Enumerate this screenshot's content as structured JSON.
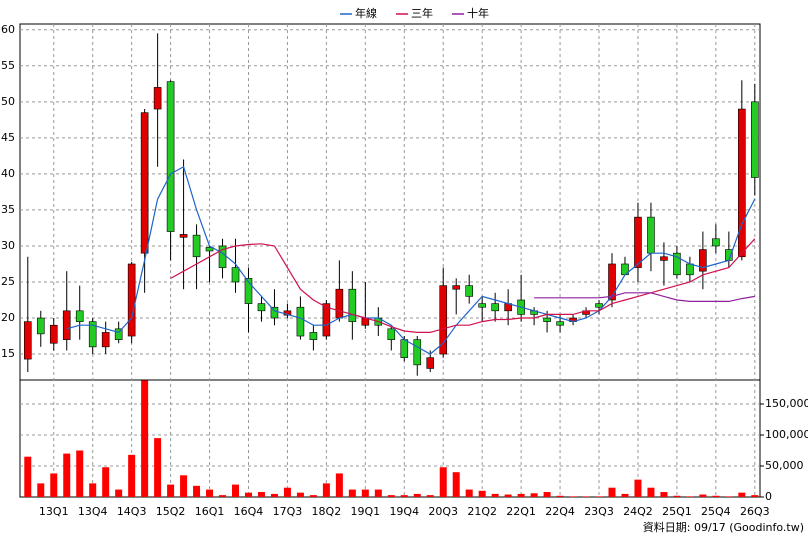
{
  "chart_data": {
    "type": "candlestick",
    "categories": [
      null,
      null,
      "13Q1",
      null,
      null,
      "13Q4",
      null,
      null,
      "14Q3",
      null,
      null,
      "15Q2",
      null,
      null,
      "16Q1",
      null,
      null,
      "16Q4",
      null,
      null,
      "17Q3",
      null,
      null,
      "18Q2",
      null,
      null,
      "19Q1",
      null,
      null,
      "19Q4",
      null,
      null,
      "20Q3",
      null,
      null,
      "21Q2",
      null,
      null,
      "22Q1",
      null,
      null,
      "22Q4",
      null,
      null,
      "23Q3",
      null,
      null,
      "24Q2",
      null,
      null,
      "25Q1",
      null,
      null,
      "25Q4",
      null,
      null,
      "26Q3"
    ],
    "open": [
      14.3,
      20,
      16.5,
      17,
      21,
      19.5,
      16,
      18.5,
      17.5,
      29,
      49,
      52.8,
      31.2,
      31.5,
      29.8,
      30,
      27,
      25.5,
      22,
      21.5,
      20.4,
      21.5,
      18,
      17.5,
      20,
      24,
      19,
      20,
      18.5,
      17,
      17,
      13,
      15,
      24,
      24.5,
      22,
      22,
      21,
      22.5,
      21,
      20,
      19.5,
      19.5,
      20.5,
      22,
      22.5,
      27.5,
      27,
      34,
      28,
      29,
      27.5,
      26.5,
      31,
      29.5,
      28.5,
      50
    ],
    "high": [
      28.5,
      21,
      20,
      26.5,
      24.5,
      20,
      19.5,
      19.5,
      27.8,
      49,
      59.5,
      53,
      42,
      33,
      30,
      31,
      31,
      27,
      23,
      24,
      22,
      23,
      19,
      22.5,
      28,
      26.5,
      25,
      21.5,
      19,
      17.5,
      17.5,
      15.5,
      27,
      25.5,
      26,
      23,
      23.5,
      24,
      26,
      21.5,
      21,
      20.5,
      20.5,
      21.5,
      22.5,
      29,
      28.5,
      36,
      36,
      30.5,
      30,
      28.5,
      32,
      33,
      32,
      53,
      52.5
    ],
    "low": [
      12.5,
      16,
      15.5,
      15.5,
      17,
      15,
      15,
      16.5,
      16.5,
      23.5,
      41,
      28,
      24,
      24,
      25,
      25.5,
      23.5,
      18,
      19.5,
      19,
      20,
      17,
      15.5,
      17,
      19.5,
      17,
      18.5,
      17.5,
      15.5,
      14,
      12,
      12.5,
      14.5,
      20.5,
      22,
      19.5,
      19.5,
      19,
      19.5,
      19,
      18,
      18,
      19,
      20,
      20.5,
      21.5,
      26,
      25,
      26.5,
      24.5,
      25.5,
      25,
      24,
      29,
      27,
      28,
      37
    ],
    "close": [
      19.5,
      17.8,
      19,
      21,
      19.5,
      16,
      18,
      17,
      27.5,
      48.5,
      52,
      32,
      31.6,
      28.5,
      29.3,
      27,
      25,
      22,
      21,
      20,
      21,
      17.5,
      17,
      22,
      24,
      19.5,
      20,
      19,
      17,
      14.5,
      13.5,
      14.5,
      24.5,
      24.5,
      23,
      21.5,
      21,
      22,
      20.5,
      20.5,
      19.5,
      19,
      20,
      21,
      21.5,
      27.5,
      26,
      34,
      29,
      28.5,
      26,
      26,
      29.5,
      30,
      28,
      49,
      39.5
    ],
    "up_color": "#e00000",
    "down_color": "#22cc22",
    "series": [
      {
        "name": "年線",
        "color": "#1e64c8",
        "values": [
          null,
          null,
          null,
          18.5,
          19,
          19,
          18.5,
          18,
          20,
          28,
          36.5,
          40,
          41,
          35,
          30,
          29,
          27.5,
          25,
          23,
          21,
          20.5,
          20,
          19,
          19,
          20,
          20.5,
          20,
          20,
          19,
          17,
          16,
          15,
          16.5,
          19,
          21,
          23,
          22.5,
          22,
          21.5,
          21,
          20.5,
          20,
          19.5,
          20,
          21,
          23,
          26,
          27.5,
          29,
          29,
          28.5,
          27.5,
          27,
          27.5,
          28,
          33,
          36.5
        ]
      },
      {
        "name": "三年",
        "color": "#d0104c",
        "values": [
          null,
          null,
          null,
          null,
          null,
          null,
          null,
          null,
          null,
          null,
          null,
          25.5,
          26.5,
          27.5,
          28.5,
          29.5,
          30,
          30.2,
          30.3,
          30,
          27,
          24,
          22.5,
          21.5,
          21,
          20.5,
          20,
          19.5,
          18.8,
          18.2,
          18,
          18,
          18.5,
          19,
          19,
          19.5,
          19.8,
          19.8,
          20,
          20,
          20.5,
          20.5,
          20.5,
          21,
          21,
          22,
          22.5,
          23,
          23.5,
          24,
          24.5,
          25,
          26,
          26.5,
          27,
          29,
          31
        ]
      },
      {
        "name": "十年",
        "color": "#9020a0",
        "values": [
          null,
          null,
          null,
          null,
          null,
          null,
          null,
          null,
          null,
          null,
          null,
          null,
          null,
          null,
          null,
          null,
          null,
          null,
          null,
          null,
          null,
          null,
          null,
          null,
          null,
          null,
          null,
          null,
          null,
          null,
          null,
          null,
          null,
          null,
          null,
          null,
          null,
          null,
          null,
          22.8,
          22.8,
          22.8,
          22.8,
          22.8,
          22.8,
          23,
          23.5,
          23.5,
          23.5,
          23,
          22.5,
          22.3,
          22.3,
          22.3,
          22.3,
          22.7,
          23
        ]
      }
    ],
    "ylim": [
      11.4,
      60.8
    ],
    "yticks": [
      15,
      20,
      25,
      30,
      35,
      40,
      45,
      50,
      55,
      60
    ],
    "volume": {
      "color": "#ff0000",
      "values": [
        65000,
        22000,
        38000,
        70000,
        75000,
        22000,
        48000,
        12000,
        68000,
        188000,
        95000,
        20000,
        35000,
        18000,
        12000,
        3000,
        20000,
        7000,
        8000,
        5000,
        15000,
        7000,
        3000,
        22000,
        38000,
        12000,
        12000,
        12000,
        3000,
        3000,
        5000,
        3000,
        48000,
        40000,
        12000,
        10000,
        5000,
        4000,
        5000,
        6000,
        8000,
        2000,
        1000,
        1000,
        1000,
        15000,
        5000,
        28000,
        15000,
        8000,
        2000,
        1000,
        4000,
        2000,
        1000,
        7000,
        3000
      ],
      "ylim": [
        0,
        188700
      ],
      "yticks": [
        0,
        {
          "value": 50000,
          "label": "50,000"
        },
        {
          "value": 100000,
          "label": "100,000"
        },
        {
          "value": 150000,
          "label": "150,000"
        }
      ]
    },
    "grid": true,
    "footer": "資料日期: 09/17 (Goodinfo.tw)"
  }
}
